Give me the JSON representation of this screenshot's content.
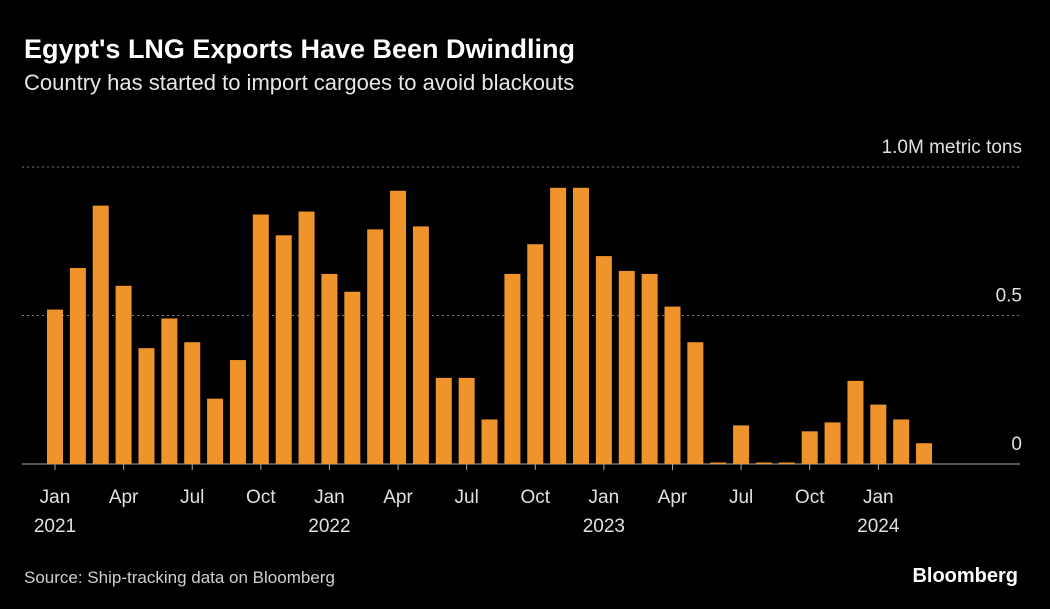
{
  "chart_data": {
    "type": "bar",
    "title": "Egypt's LNG Exports Have Been Dwindling",
    "subtitle": "Country has started to import cargoes to avoid blackouts",
    "source": "Source: Ship-tracking data on Bloomberg",
    "brand": "Bloomberg",
    "categories": [
      "Jan",
      null,
      null,
      "Apr",
      null,
      null,
      "Jul",
      null,
      null,
      "Oct",
      null,
      null,
      "Jan",
      null,
      null,
      "Apr",
      null,
      null,
      "Jul",
      null,
      null,
      "Oct",
      null,
      null,
      "Jan",
      null,
      null,
      "Apr",
      null,
      null,
      "Jul",
      null,
      null,
      "Oct",
      null,
      null,
      "Jan",
      null,
      null
    ],
    "year_labels": [
      "2021",
      "2022",
      "2023",
      "2024"
    ],
    "values": [
      0.52,
      0.66,
      0.87,
      0.6,
      0.39,
      0.49,
      0.41,
      0.22,
      0.35,
      0.84,
      0.77,
      0.85,
      0.64,
      0.58,
      0.79,
      0.92,
      0.8,
      0.29,
      0.29,
      0.15,
      0.64,
      0.74,
      0.93,
      0.93,
      0.7,
      0.65,
      0.64,
      0.53,
      0.41,
      0.005,
      0.13,
      0.005,
      0.005,
      0.11,
      0.14,
      0.28,
      0.2,
      0.15,
      0.07
    ],
    "color": "#ee942b",
    "ylim": [
      0,
      1.0
    ],
    "yticks": [
      0,
      0.5,
      {
        "value": 1.0,
        "label": "1.0M metric tons"
      }
    ],
    "grid": true
  }
}
